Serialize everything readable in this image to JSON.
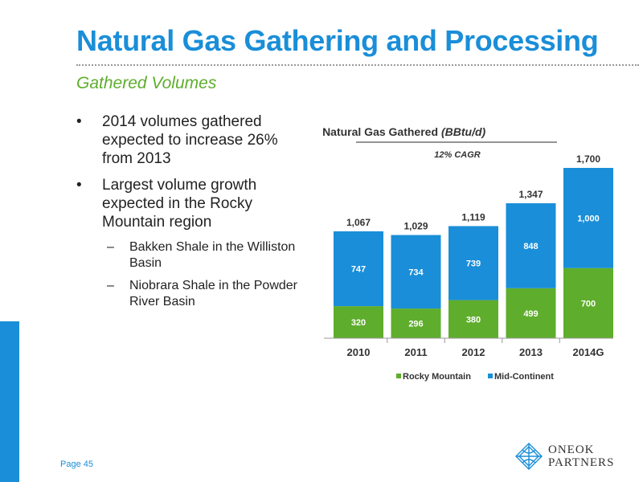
{
  "slide": {
    "title": "Natural Gas Gathering and Processing",
    "subtitle": "Gathered Volumes",
    "page": "Page 45"
  },
  "bullets": [
    {
      "text": "2014 volumes gathered expected to increase 26% from 2013"
    },
    {
      "text": "Largest volume growth expected in the Rocky Mountain region"
    }
  ],
  "sub_bullets": [
    {
      "text": "Bakken Shale in the Williston Basin"
    },
    {
      "text": "Niobrara Shale in the Powder River Basin"
    }
  ],
  "chart_data": {
    "type": "bar",
    "stacked": true,
    "title": "Natural Gas Gathered",
    "title_unit": "(BBtu/d)",
    "subtitle": "12% CAGR",
    "categories": [
      "2010",
      "2011",
      "2012",
      "2013",
      "2014G"
    ],
    "totals": [
      "1,067",
      "1,029",
      "1,119",
      "1,347",
      "1,700"
    ],
    "series": [
      {
        "name": "Rocky Mountain",
        "color": "#5fad2c",
        "values": [
          320,
          296,
          380,
          499,
          700
        ]
      },
      {
        "name": "Mid-Continent",
        "color": "#1a8ed8",
        "values": [
          747,
          734,
          739,
          848,
          1000
        ]
      }
    ],
    "data_labels": [
      [
        "320",
        "296",
        "380",
        "499",
        "700"
      ],
      [
        "747",
        "734",
        "739",
        "848",
        "1,000"
      ]
    ],
    "ylim": [
      0,
      1700
    ],
    "legend": "bottom",
    "grid": false
  },
  "logo": {
    "line1": "ONEOK",
    "line2": "PARTNERS",
    "icon": "oneok-globe-icon"
  }
}
